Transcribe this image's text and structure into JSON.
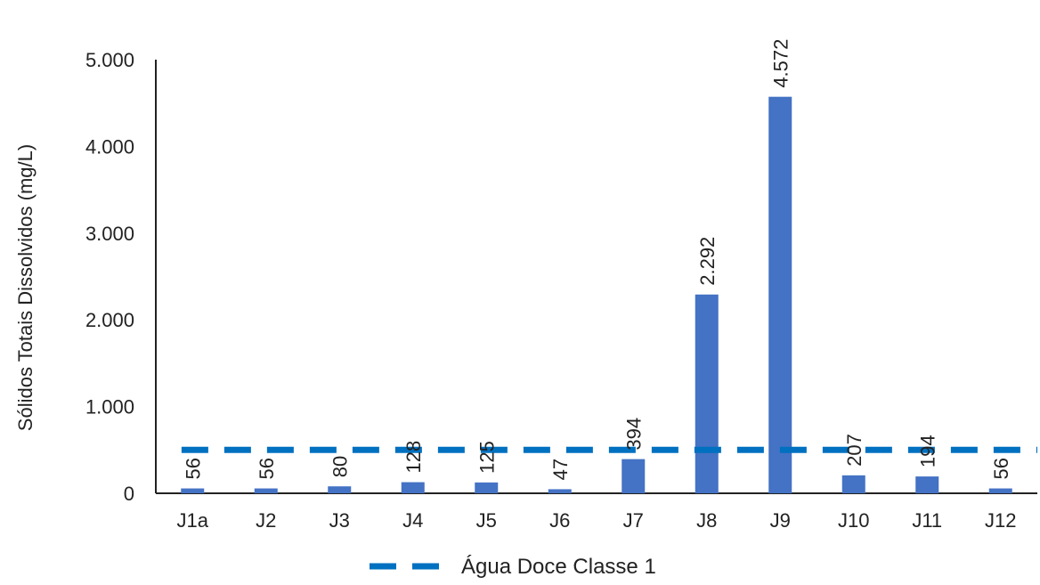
{
  "chart_data": {
    "type": "bar",
    "ylabel": "Sólidos Totais Dissolvidos (mg/L)",
    "xlabel": "",
    "categories": [
      "J1a",
      "J2",
      "J3",
      "J4",
      "J5",
      "J6",
      "J7",
      "J8",
      "J9",
      "J10",
      "J11",
      "J12"
    ],
    "series": [
      {
        "values": [
          56,
          56,
          80,
          128,
          125,
          47,
          394,
          2292,
          4572,
          207,
          194,
          56
        ],
        "labels": [
          "56",
          "56",
          "80",
          "128",
          "125",
          "47",
          "394",
          "2.292",
          "4.572",
          "207",
          "194",
          "56"
        ],
        "color": "#4472C4"
      }
    ],
    "reference_line": {
      "name": "Água Doce Classe 1",
      "value": 500,
      "color": "#0070C0",
      "style": "dashed"
    },
    "ylim": [
      0,
      5000
    ],
    "yticks": [
      0,
      1000,
      2000,
      3000,
      4000,
      5000
    ],
    "ytick_labels": [
      "0",
      "1.000",
      "2.000",
      "3.000",
      "4.000",
      "5.000"
    ],
    "grid": false,
    "legend_position": "bottom"
  }
}
